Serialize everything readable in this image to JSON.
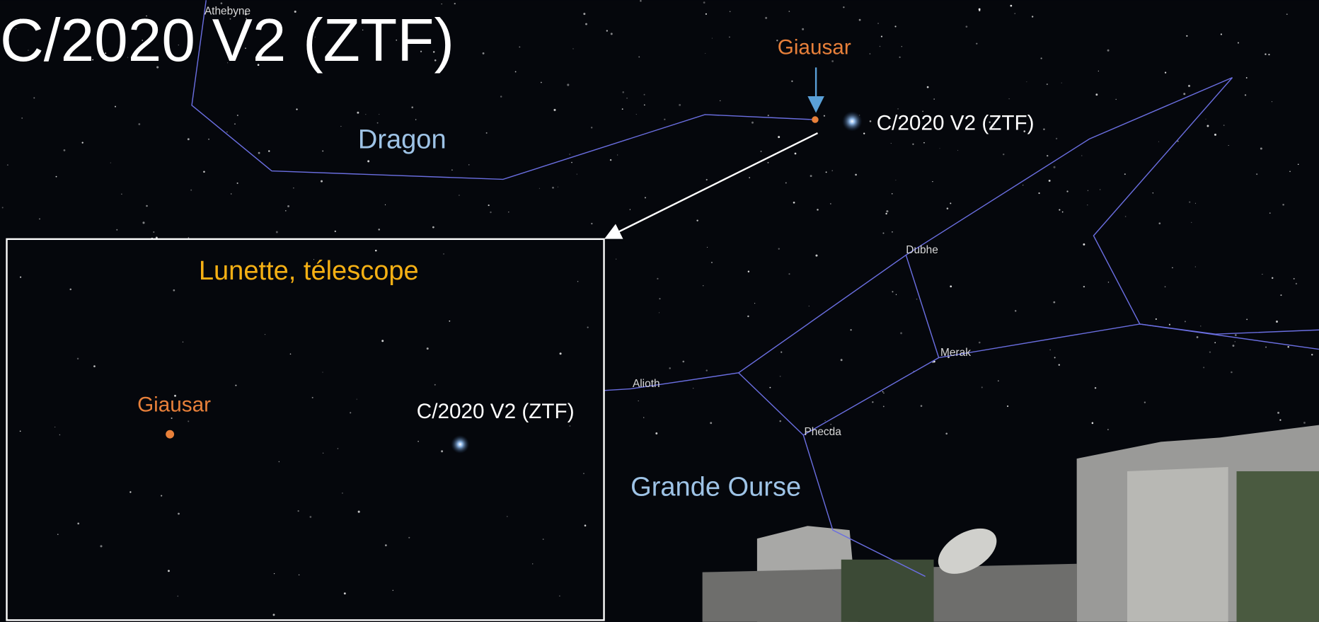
{
  "title": "C/2020 V2 (ZTF)",
  "sky": {
    "constellations": [
      "Dragon",
      "Grande Ourse"
    ],
    "stars": [
      "Athebyne",
      "Dubhe",
      "Merak",
      "Alioth",
      "Phecda"
    ],
    "marked_star": "Giausar",
    "comet": "C/2020 V2 (ZTF)"
  },
  "inset": {
    "title": "Lunette, télescope",
    "marked_star": "Giausar",
    "comet": "C/2020 V2 (ZTF)"
  }
}
